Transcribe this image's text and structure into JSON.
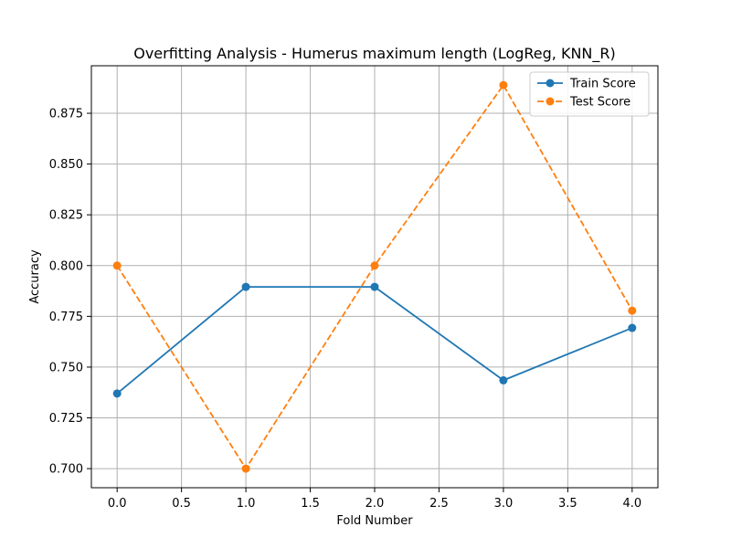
{
  "chart_data": {
    "type": "line",
    "title": "Overfitting Analysis - Humerus maximum length (LogReg, KNN_R)",
    "xlabel": "Fold Number",
    "ylabel": "Accuracy",
    "x": [
      0,
      1,
      2,
      3,
      4
    ],
    "xlim": [
      -0.2,
      4.2
    ],
    "ylim": [
      0.6906,
      0.8984
    ],
    "xticks": [
      0.0,
      0.5,
      1.0,
      1.5,
      2.0,
      2.5,
      3.0,
      3.5,
      4.0
    ],
    "xtick_labels": [
      "0.0",
      "0.5",
      "1.0",
      "1.5",
      "2.0",
      "2.5",
      "3.0",
      "3.5",
      "4.0"
    ],
    "yticks": [
      0.7,
      0.725,
      0.75,
      0.775,
      0.8,
      0.825,
      0.85,
      0.875
    ],
    "ytick_labels": [
      "0.700",
      "0.725",
      "0.750",
      "0.775",
      "0.800",
      "0.825",
      "0.850",
      "0.875"
    ],
    "grid": true,
    "legend_position": "top-right",
    "series": [
      {
        "name": "Train Score",
        "values": [
          0.737,
          0.7895,
          0.7895,
          0.7435,
          0.7693
        ],
        "color": "#1f77b4",
        "line_style": "solid",
        "marker": "circle"
      },
      {
        "name": "Test Score",
        "values": [
          0.8,
          0.7,
          0.8,
          0.8889,
          0.7778
        ],
        "color": "#ff7f0e",
        "line_style": "dashed",
        "marker": "circle"
      }
    ]
  }
}
